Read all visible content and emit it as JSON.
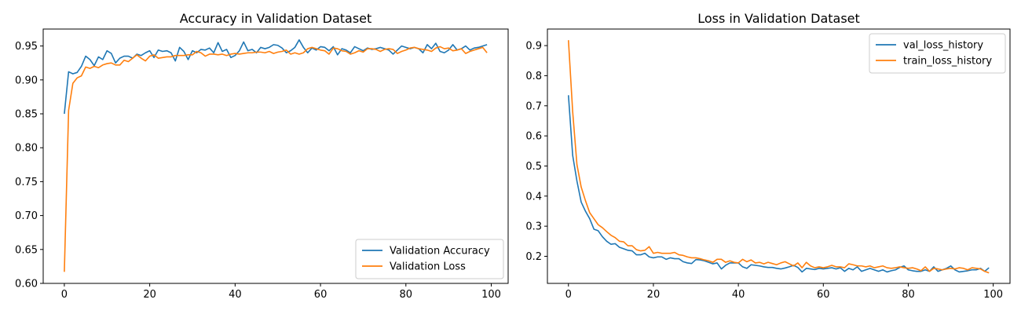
{
  "chart_data": [
    {
      "type": "line",
      "title": "Accuracy in Validation Dataset",
      "xlabel": "",
      "ylabel": "",
      "xlim": [
        -4.95,
        103.95
      ],
      "ylim": [
        0.6,
        0.975
      ],
      "xticks": [
        0,
        20,
        40,
        60,
        80,
        100
      ],
      "yticks": [
        0.6,
        0.65,
        0.7,
        0.75,
        0.8,
        0.85,
        0.9,
        0.95
      ],
      "ytick_labels": [
        "0.60",
        "0.65",
        "0.70",
        "0.75",
        "0.80",
        "0.85",
        "0.90",
        "0.95"
      ],
      "grid": false,
      "legend": "lower-right",
      "colors": [
        "#1f77b4",
        "#ff7f0e"
      ],
      "x": [
        0,
        1,
        2,
        3,
        4,
        5,
        6,
        7,
        8,
        9,
        10,
        11,
        12,
        13,
        14,
        15,
        16,
        17,
        18,
        19,
        20,
        21,
        22,
        23,
        24,
        25,
        26,
        27,
        28,
        29,
        30,
        31,
        32,
        33,
        34,
        35,
        36,
        37,
        38,
        39,
        40,
        41,
        42,
        43,
        44,
        45,
        46,
        47,
        48,
        49,
        50,
        51,
        52,
        53,
        54,
        55,
        56,
        57,
        58,
        59,
        60,
        61,
        62,
        63,
        64,
        65,
        66,
        67,
        68,
        69,
        70,
        71,
        72,
        73,
        74,
        75,
        76,
        77,
        78,
        79,
        80,
        81,
        82,
        83,
        84,
        85,
        86,
        87,
        88,
        89,
        90,
        91,
        92,
        93,
        94,
        95,
        96,
        97,
        98,
        99
      ],
      "series": [
        {
          "name": "Validation Accuracy",
          "values": [
            0.85,
            0.912,
            0.909,
            0.911,
            0.92,
            0.935,
            0.93,
            0.921,
            0.934,
            0.93,
            0.943,
            0.939,
            0.925,
            0.932,
            0.935,
            0.935,
            0.932,
            0.938,
            0.936,
            0.94,
            0.943,
            0.933,
            0.944,
            0.942,
            0.943,
            0.94,
            0.928,
            0.948,
            0.942,
            0.93,
            0.943,
            0.94,
            0.945,
            0.944,
            0.947,
            0.94,
            0.955,
            0.942,
            0.945,
            0.933,
            0.936,
            0.943,
            0.956,
            0.943,
            0.945,
            0.94,
            0.948,
            0.946,
            0.948,
            0.952,
            0.951,
            0.947,
            0.94,
            0.943,
            0.948,
            0.959,
            0.948,
            0.94,
            0.947,
            0.944,
            0.949,
            0.948,
            0.943,
            0.949,
            0.937,
            0.946,
            0.944,
            0.94,
            0.949,
            0.946,
            0.943,
            0.947,
            0.945,
            0.946,
            0.948,
            0.946,
            0.944,
            0.938,
            0.944,
            0.95,
            0.948,
            0.946,
            0.948,
            0.946,
            0.94,
            0.952,
            0.946,
            0.954,
            0.942,
            0.94,
            0.944,
            0.952,
            0.944,
            0.946,
            0.95,
            0.944,
            0.947,
            0.948,
            0.95,
            0.952
          ]
        },
        {
          "name": "Validation Loss",
          "values": [
            0.617,
            0.855,
            0.895,
            0.903,
            0.906,
            0.919,
            0.917,
            0.92,
            0.918,
            0.922,
            0.924,
            0.925,
            0.922,
            0.922,
            0.929,
            0.927,
            0.932,
            0.937,
            0.932,
            0.928,
            0.935,
            0.937,
            0.932,
            0.933,
            0.934,
            0.934,
            0.936,
            0.936,
            0.936,
            0.937,
            0.937,
            0.942,
            0.94,
            0.935,
            0.938,
            0.938,
            0.937,
            0.938,
            0.936,
            0.938,
            0.939,
            0.938,
            0.939,
            0.94,
            0.94,
            0.941,
            0.941,
            0.94,
            0.942,
            0.939,
            0.941,
            0.942,
            0.944,
            0.938,
            0.94,
            0.938,
            0.94,
            0.946,
            0.948,
            0.946,
            0.944,
            0.943,
            0.938,
            0.947,
            0.946,
            0.943,
            0.942,
            0.938,
            0.94,
            0.943,
            0.941,
            0.946,
            0.946,
            0.945,
            0.942,
            0.945,
            0.946,
            0.945,
            0.939,
            0.942,
            0.944,
            0.947,
            0.948,
            0.946,
            0.945,
            0.944,
            0.942,
            0.947,
            0.949,
            0.946,
            0.947,
            0.943,
            0.944,
            0.946,
            0.939,
            0.942,
            0.944,
            0.946,
            0.948,
            0.94
          ]
        }
      ]
    },
    {
      "type": "line",
      "title": "Loss in Validation Dataset",
      "xlabel": "",
      "ylabel": "",
      "xlim": [
        -4.95,
        103.95
      ],
      "ylim": [
        0.11,
        0.955
      ],
      "xticks": [
        0,
        20,
        40,
        60,
        80,
        100
      ],
      "yticks": [
        0.2,
        0.3,
        0.4,
        0.5,
        0.6,
        0.7,
        0.8,
        0.9
      ],
      "ytick_labels": [
        "0.2",
        "0.3",
        "0.4",
        "0.5",
        "0.6",
        "0.7",
        "0.8",
        "0.9"
      ],
      "grid": false,
      "legend": "upper-right",
      "colors": [
        "#1f77b4",
        "#ff7f0e"
      ],
      "x": [
        0,
        1,
        2,
        3,
        4,
        5,
        6,
        7,
        8,
        9,
        10,
        11,
        12,
        13,
        14,
        15,
        16,
        17,
        18,
        19,
        20,
        21,
        22,
        23,
        24,
        25,
        26,
        27,
        28,
        29,
        30,
        31,
        32,
        33,
        34,
        35,
        36,
        37,
        38,
        39,
        40,
        41,
        42,
        43,
        44,
        45,
        46,
        47,
        48,
        49,
        50,
        51,
        52,
        53,
        54,
        55,
        56,
        57,
        58,
        59,
        60,
        61,
        62,
        63,
        64,
        65,
        66,
        67,
        68,
        69,
        70,
        71,
        72,
        73,
        74,
        75,
        76,
        77,
        78,
        79,
        80,
        81,
        82,
        83,
        84,
        85,
        86,
        87,
        88,
        89,
        90,
        91,
        92,
        93,
        94,
        95,
        96,
        97,
        98,
        99
      ],
      "series": [
        {
          "name": "val_loss_history",
          "values": [
            0.735,
            0.535,
            0.45,
            0.38,
            0.35,
            0.325,
            0.29,
            0.285,
            0.265,
            0.25,
            0.24,
            0.242,
            0.23,
            0.225,
            0.22,
            0.218,
            0.205,
            0.205,
            0.21,
            0.198,
            0.195,
            0.198,
            0.198,
            0.19,
            0.195,
            0.192,
            0.192,
            0.182,
            0.178,
            0.176,
            0.189,
            0.188,
            0.185,
            0.18,
            0.175,
            0.178,
            0.158,
            0.17,
            0.178,
            0.178,
            0.178,
            0.165,
            0.16,
            0.172,
            0.17,
            0.168,
            0.165,
            0.163,
            0.163,
            0.16,
            0.158,
            0.161,
            0.165,
            0.17,
            0.163,
            0.148,
            0.16,
            0.158,
            0.156,
            0.16,
            0.158,
            0.16,
            0.162,
            0.158,
            0.162,
            0.15,
            0.16,
            0.155,
            0.165,
            0.15,
            0.155,
            0.16,
            0.155,
            0.15,
            0.155,
            0.148,
            0.152,
            0.155,
            0.163,
            0.168,
            0.155,
            0.152,
            0.15,
            0.15,
            0.155,
            0.15,
            0.165,
            0.15,
            0.155,
            0.16,
            0.168,
            0.155,
            0.148,
            0.15,
            0.152,
            0.155,
            0.155,
            0.16,
            0.15,
            0.162
          ]
        },
        {
          "name": "train_loss_history",
          "values": [
            0.918,
            0.68,
            0.505,
            0.43,
            0.385,
            0.345,
            0.325,
            0.305,
            0.295,
            0.282,
            0.27,
            0.262,
            0.25,
            0.248,
            0.235,
            0.235,
            0.222,
            0.218,
            0.22,
            0.232,
            0.21,
            0.213,
            0.21,
            0.21,
            0.21,
            0.213,
            0.205,
            0.203,
            0.198,
            0.195,
            0.195,
            0.192,
            0.188,
            0.185,
            0.18,
            0.19,
            0.19,
            0.18,
            0.185,
            0.18,
            0.178,
            0.19,
            0.182,
            0.188,
            0.178,
            0.18,
            0.175,
            0.18,
            0.176,
            0.172,
            0.178,
            0.182,
            0.175,
            0.168,
            0.178,
            0.162,
            0.18,
            0.168,
            0.162,
            0.165,
            0.162,
            0.165,
            0.17,
            0.165,
            0.165,
            0.162,
            0.175,
            0.172,
            0.168,
            0.168,
            0.165,
            0.168,
            0.162,
            0.165,
            0.168,
            0.162,
            0.16,
            0.162,
            0.165,
            0.162,
            0.16,
            0.162,
            0.158,
            0.152,
            0.165,
            0.15,
            0.16,
            0.158,
            0.155,
            0.158,
            0.16,
            0.158,
            0.162,
            0.16,
            0.155,
            0.162,
            0.16,
            0.158,
            0.15,
            0.145
          ]
        }
      ]
    }
  ]
}
